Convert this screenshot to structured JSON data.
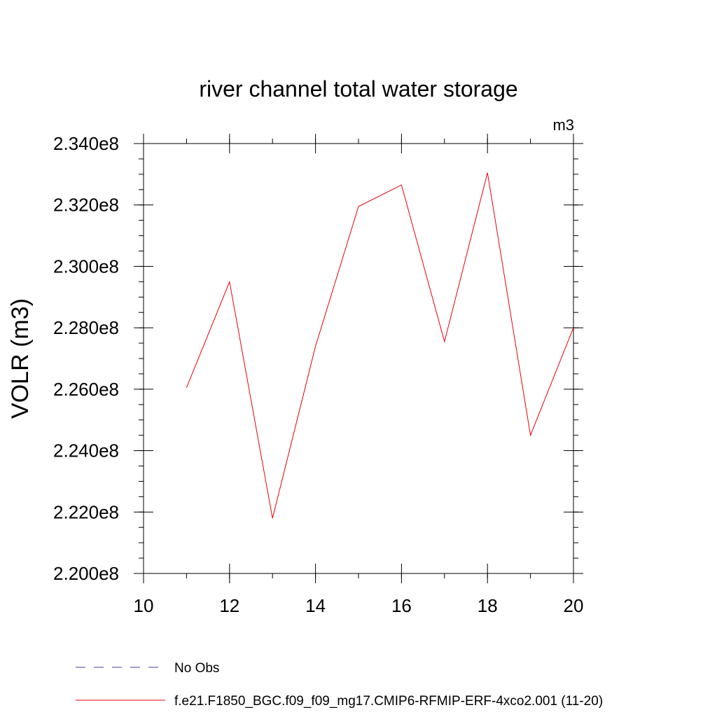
{
  "chart_data": {
    "type": "line",
    "title": "river channel total water storage",
    "units_label": "m3",
    "ylabel": "VOLR  (m3)",
    "xlabel": "",
    "xlim": [
      10,
      20
    ],
    "ylim": [
      220000000,
      234000000
    ],
    "x_ticks": [
      10,
      12,
      14,
      16,
      18,
      20
    ],
    "x_tick_labels": [
      "10",
      "12",
      "14",
      "16",
      "18",
      "20"
    ],
    "x_minor_step": 1,
    "y_ticks": [
      220000000,
      222000000,
      224000000,
      226000000,
      228000000,
      230000000,
      232000000,
      234000000
    ],
    "y_tick_labels": [
      "2.200e8",
      "2.220e8",
      "2.240e8",
      "2.260e8",
      "2.280e8",
      "2.300e8",
      "2.320e8",
      "2.340e8"
    ],
    "y_minor_step": 500000,
    "grid": false,
    "legend_position": "bottom",
    "series": [
      {
        "name": "f.e21.F1850_BGC.f09_f09_mg17.CMIP6-RFMIP-ERF-4xco2.001 (11-20)",
        "color": "#e8000b",
        "dash": "solid",
        "x": [
          11,
          12,
          13,
          14,
          15,
          16,
          17,
          18,
          19,
          20
        ],
        "values": [
          226050000,
          229500000,
          221800000,
          227400000,
          231950000,
          232650000,
          227550000,
          233050000,
          224500000,
          228000000
        ]
      }
    ],
    "legend": [
      {
        "label": "No Obs",
        "color": "#4b3aa0",
        "dash": "dashed"
      },
      {
        "label": "f.e21.F1850_BGC.f09_f09_mg17.CMIP6-RFMIP-ERF-4xco2.001 (11-20)",
        "color": "#e8000b",
        "dash": "solid"
      }
    ]
  }
}
